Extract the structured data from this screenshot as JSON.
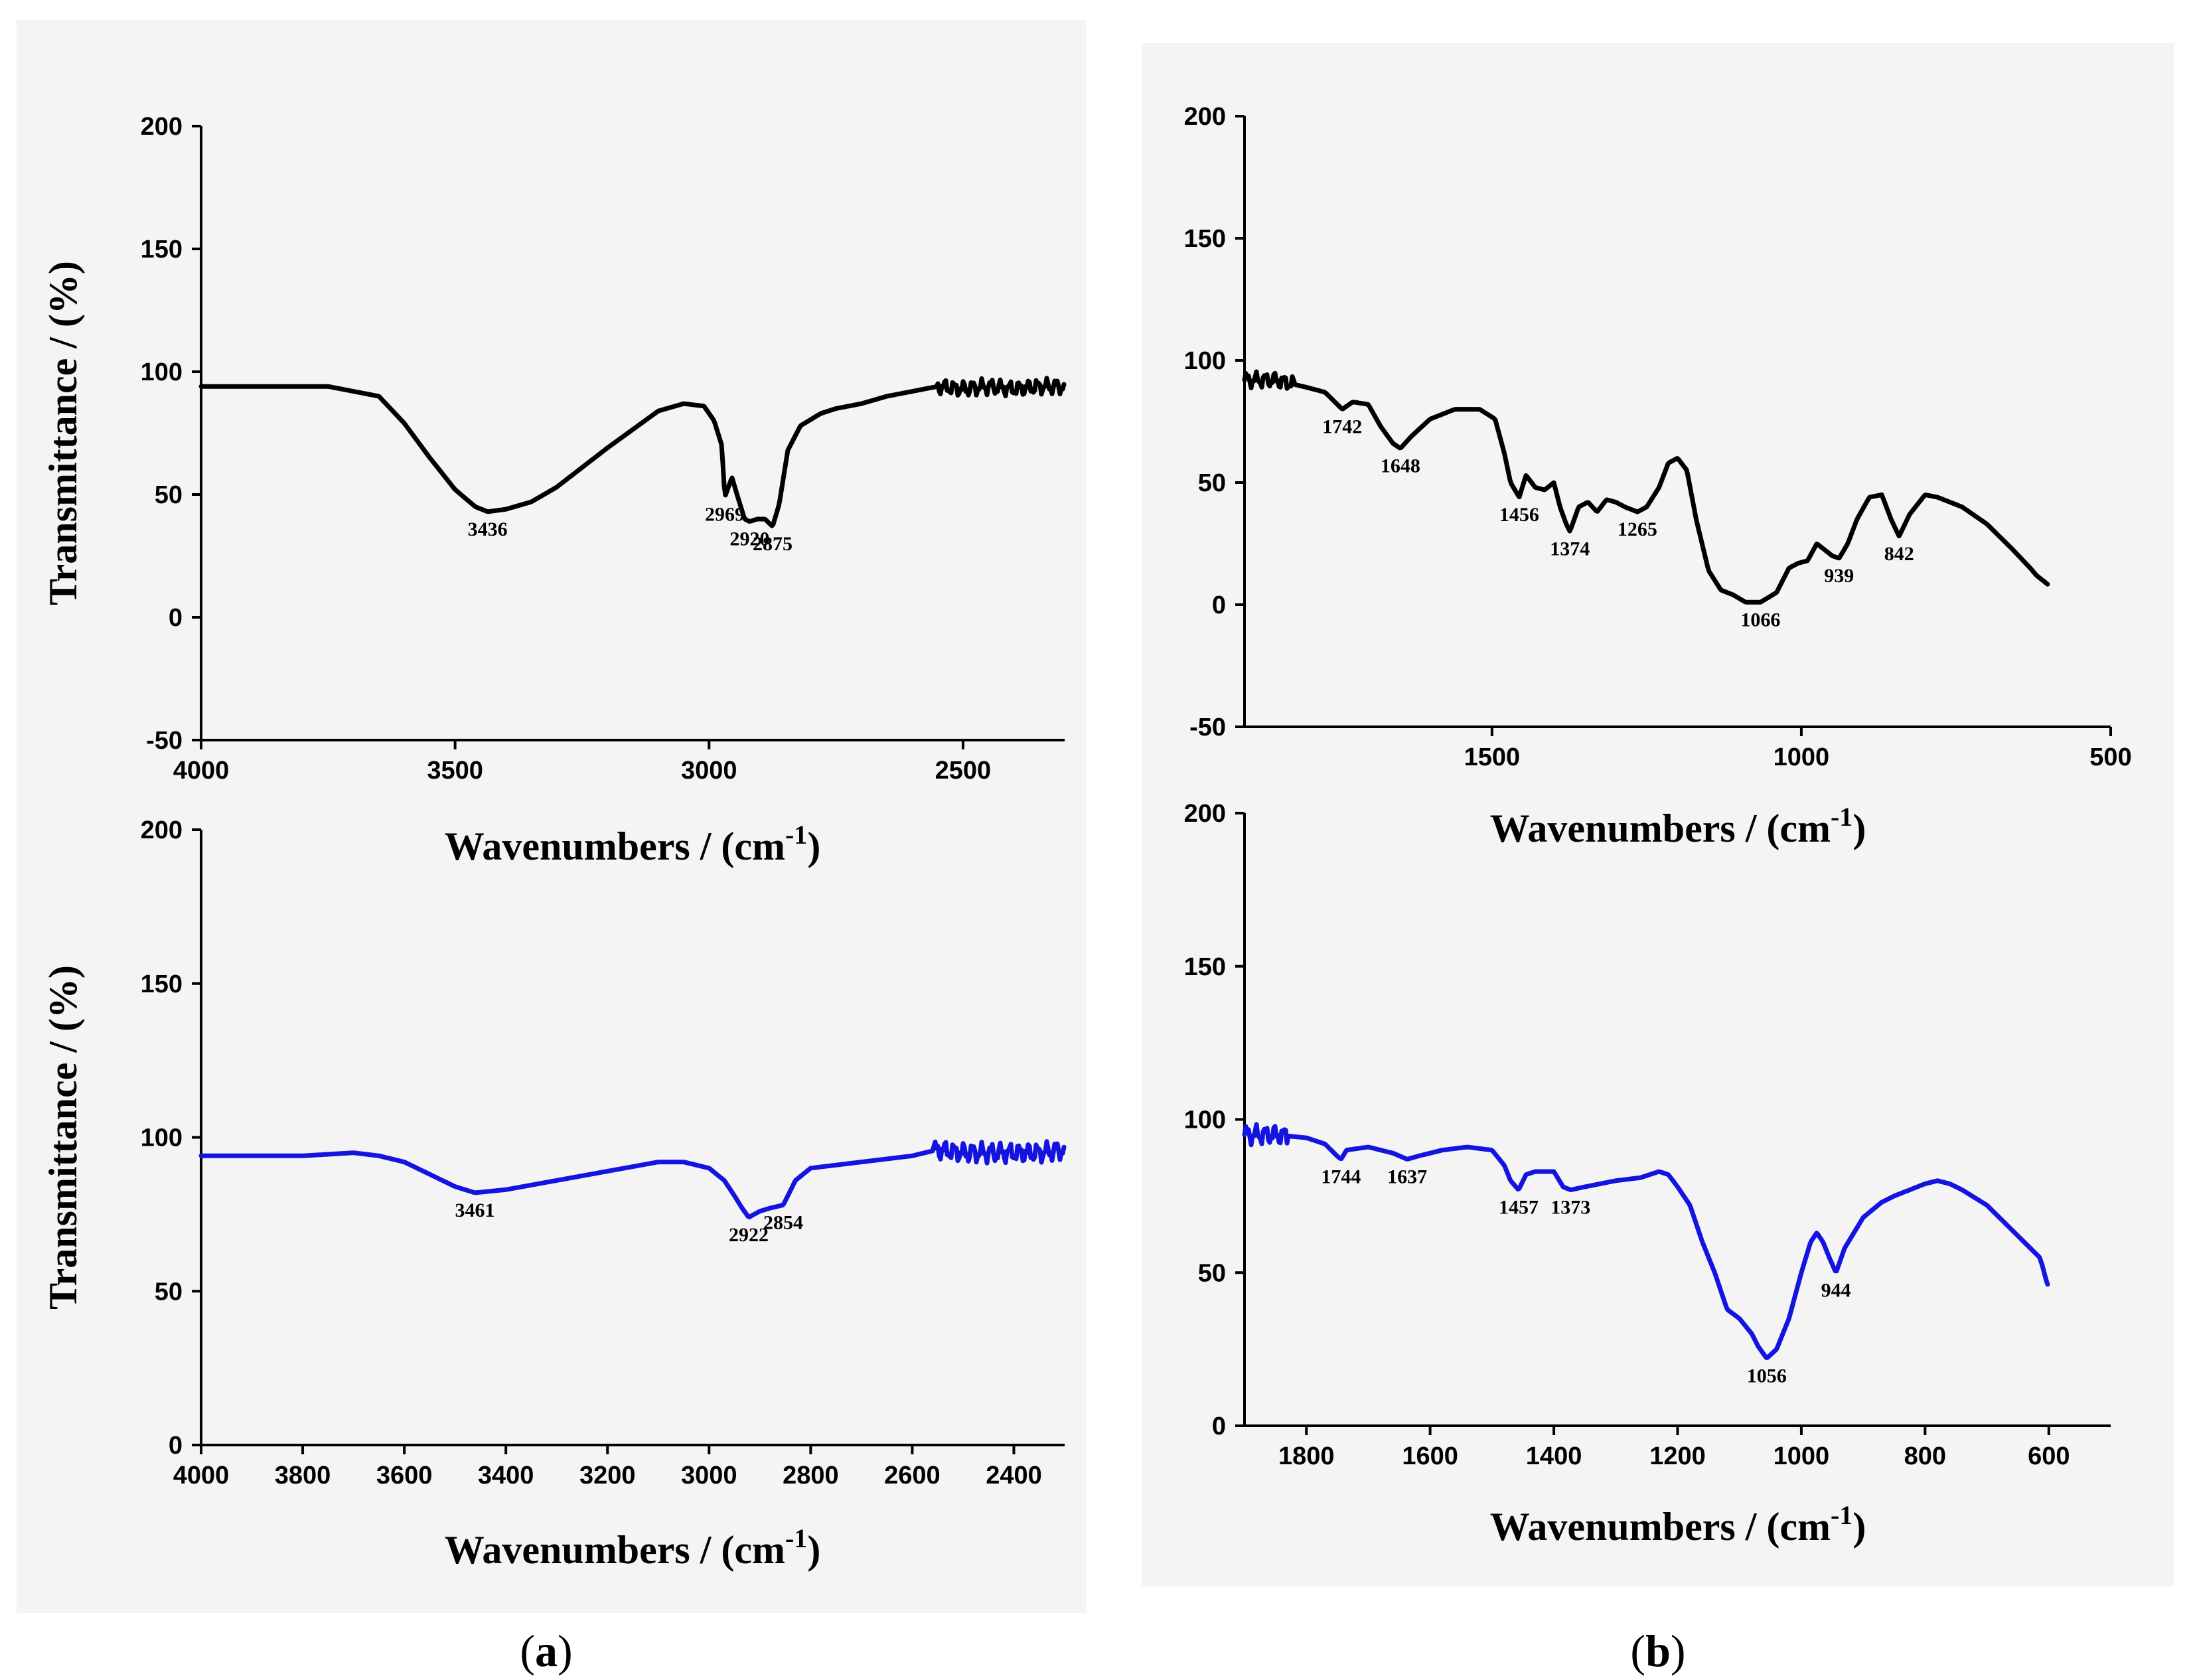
{
  "captions": {
    "a": "a",
    "b": "b"
  },
  "chart_data": [
    {
      "id": "a-top",
      "type": "line",
      "xlabel": "Wavenumbers / (cm",
      "xlabel_sup": "-1",
      "xlabel_close": ")",
      "ylabel": "Transmittance / (%)",
      "xlim": [
        4000,
        2300
      ],
      "ylim": [
        -50,
        200
      ],
      "xticks": [
        4000,
        3500,
        3000,
        2500
      ],
      "yticks": [
        -50,
        0,
        50,
        100,
        150,
        200
      ],
      "series": [
        {
          "name": "spectrum",
          "color": "#000000",
          "noise": [
            2550,
            2300
          ],
          "x": [
            4000,
            3750,
            3650,
            3600,
            3550,
            3500,
            3460,
            3436,
            3400,
            3350,
            3300,
            3200,
            3100,
            3050,
            3010,
            2990,
            2975,
            2969,
            2955,
            2945,
            2930,
            2920,
            2905,
            2890,
            2875,
            2862,
            2845,
            2820,
            2780,
            2750,
            2700,
            2650,
            2600,
            2550,
            2500,
            2450,
            2400,
            2350,
            2300
          ],
          "y": [
            94,
            94,
            90,
            79,
            65,
            52,
            45,
            43,
            44,
            47,
            53,
            69,
            84,
            87,
            86,
            80,
            70,
            49,
            57,
            50,
            40,
            39,
            40,
            40,
            37,
            46,
            68,
            78,
            83,
            85,
            87,
            90,
            92,
            94,
            93,
            94,
            93,
            94,
            94
          ]
        }
      ],
      "annotations": [
        {
          "label": "3436",
          "x": 3436,
          "y": 43
        },
        {
          "label": "2969",
          "x": 2969,
          "y": 49
        },
        {
          "label": "2920",
          "x": 2920,
          "y": 39
        },
        {
          "label": "2875",
          "x": 2875,
          "y": 37
        }
      ]
    },
    {
      "id": "a-bottom",
      "type": "line",
      "xlabel": "Wavenumbers / (cm",
      "xlabel_sup": "-1",
      "xlabel_close": ")",
      "ylabel": "Transmittance / (%)",
      "xlim": [
        4000,
        2300
      ],
      "ylim": [
        0,
        200
      ],
      "xticks": [
        4000,
        3800,
        3600,
        3400,
        3200,
        3000,
        2800,
        2600,
        2400
      ],
      "yticks": [
        0,
        50,
        100,
        150,
        200
      ],
      "series": [
        {
          "name": "spectrum",
          "color": "#1414e0",
          "noise": [
            2560,
            2300
          ],
          "x": [
            4000,
            3800,
            3700,
            3650,
            3600,
            3550,
            3500,
            3461,
            3400,
            3300,
            3200,
            3100,
            3050,
            3000,
            2970,
            2950,
            2935,
            2922,
            2900,
            2880,
            2854,
            2830,
            2800,
            2750,
            2700,
            2650,
            2600,
            2550,
            2500,
            2450,
            2400,
            2350,
            2300
          ],
          "y": [
            94,
            94,
            95,
            94,
            92,
            88,
            84,
            82,
            83,
            86,
            89,
            92,
            92,
            90,
            86,
            81,
            77,
            74,
            76,
            77,
            78,
            86,
            90,
            91,
            92,
            93,
            94,
            96,
            95,
            95,
            95,
            95,
            96
          ]
        }
      ],
      "annotations": [
        {
          "label": "3461",
          "x": 3461,
          "y": 82
        },
        {
          "label": "2922",
          "x": 2922,
          "y": 74
        },
        {
          "label": "2854",
          "x": 2854,
          "y": 78
        }
      ]
    },
    {
      "id": "b-top",
      "type": "line",
      "xlabel": "Wavenumbers / (cm",
      "xlabel_sup": "-1",
      "xlabel_close": ")",
      "ylabel": "",
      "xlim": [
        1900,
        500
      ],
      "ylim": [
        -50,
        200
      ],
      "xticks": [
        1500,
        1000,
        500
      ],
      "yticks": [
        -50,
        0,
        50,
        100,
        150,
        200
      ],
      "series": [
        {
          "name": "spectrum",
          "color": "#000000",
          "noise": [
            1900,
            1820
          ],
          "x": [
            1900,
            1850,
            1800,
            1770,
            1750,
            1742,
            1725,
            1700,
            1680,
            1660,
            1648,
            1630,
            1600,
            1560,
            1520,
            1495,
            1480,
            1470,
            1456,
            1445,
            1430,
            1415,
            1400,
            1390,
            1380,
            1374,
            1360,
            1345,
            1330,
            1315,
            1300,
            1285,
            1265,
            1250,
            1230,
            1215,
            1200,
            1185,
            1170,
            1150,
            1130,
            1110,
            1090,
            1066,
            1040,
            1020,
            1005,
            990,
            975,
            960,
            950,
            939,
            925,
            910,
            890,
            870,
            855,
            842,
            825,
            800,
            780,
            740,
            700,
            660,
            630,
            620,
            610,
            600
          ],
          "y": [
            92,
            92,
            89,
            87,
            82,
            80,
            83,
            82,
            73,
            66,
            64,
            69,
            76,
            80,
            80,
            76,
            62,
            50,
            44,
            53,
            48,
            47,
            50,
            40,
            33,
            30,
            40,
            42,
            38,
            43,
            42,
            40,
            38,
            40,
            48,
            58,
            60,
            55,
            35,
            14,
            6,
            4,
            1,
            1,
            5,
            15,
            17,
            18,
            25,
            22,
            20,
            19,
            25,
            35,
            44,
            45,
            35,
            28,
            37,
            45,
            44,
            40,
            33,
            23,
            15,
            12,
            10,
            8
          ]
        }
      ],
      "annotations": [
        {
          "label": "1742",
          "x": 1742,
          "y": 80
        },
        {
          "label": "1648",
          "x": 1648,
          "y": 64
        },
        {
          "label": "1456",
          "x": 1456,
          "y": 44
        },
        {
          "label": "1374",
          "x": 1374,
          "y": 30
        },
        {
          "label": "1265",
          "x": 1265,
          "y": 38
        },
        {
          "label": "1066",
          "x": 1066,
          "y": 1
        },
        {
          "label": "939",
          "x": 939,
          "y": 19
        },
        {
          "label": "842",
          "x": 842,
          "y": 28
        }
      ]
    },
    {
      "id": "b-bottom",
      "type": "line",
      "xlabel": "Wavenumbers / (cm",
      "xlabel_sup": "-1",
      "xlabel_close": ")",
      "ylabel": "",
      "xlim": [
        1900,
        500
      ],
      "ylim": [
        0,
        200
      ],
      "xticks": [
        1800,
        1600,
        1400,
        1200,
        1000,
        800,
        600
      ],
      "yticks": [
        0,
        50,
        100,
        150,
        200
      ],
      "series": [
        {
          "name": "spectrum",
          "color": "#1414e0",
          "noise": [
            1900,
            1830
          ],
          "x": [
            1900,
            1850,
            1800,
            1770,
            1750,
            1744,
            1735,
            1700,
            1660,
            1637,
            1620,
            1580,
            1540,
            1500,
            1480,
            1470,
            1457,
            1445,
            1430,
            1400,
            1385,
            1373,
            1350,
            1300,
            1260,
            1230,
            1215,
            1200,
            1180,
            1160,
            1140,
            1120,
            1100,
            1080,
            1070,
            1056,
            1040,
            1020,
            1000,
            985,
            975,
            965,
            955,
            944,
            930,
            915,
            900,
            870,
            850,
            800,
            780,
            760,
            740,
            700,
            680,
            660,
            640,
            630,
            620,
            615,
            610,
            605,
            600
          ],
          "y": [
            95,
            95,
            94,
            92,
            88,
            87,
            90,
            91,
            89,
            87,
            88,
            90,
            91,
            90,
            85,
            80,
            77,
            82,
            83,
            83,
            78,
            77,
            78,
            80,
            81,
            83,
            82,
            78,
            72,
            60,
            50,
            38,
            35,
            30,
            26,
            22,
            25,
            35,
            50,
            60,
            63,
            60,
            55,
            50,
            58,
            63,
            68,
            73,
            75,
            79,
            80,
            79,
            77,
            72,
            68,
            64,
            60,
            58,
            56,
            55,
            52,
            48,
            45
          ]
        }
      ],
      "annotations": [
        {
          "label": "1744",
          "x": 1744,
          "y": 87
        },
        {
          "label": "1637",
          "x": 1637,
          "y": 87
        },
        {
          "label": "1457",
          "x": 1457,
          "y": 77
        },
        {
          "label": "1373",
          "x": 1373,
          "y": 77
        },
        {
          "label": "1056",
          "x": 1056,
          "y": 22
        },
        {
          "label": "944",
          "x": 944,
          "y": 50
        }
      ]
    }
  ]
}
